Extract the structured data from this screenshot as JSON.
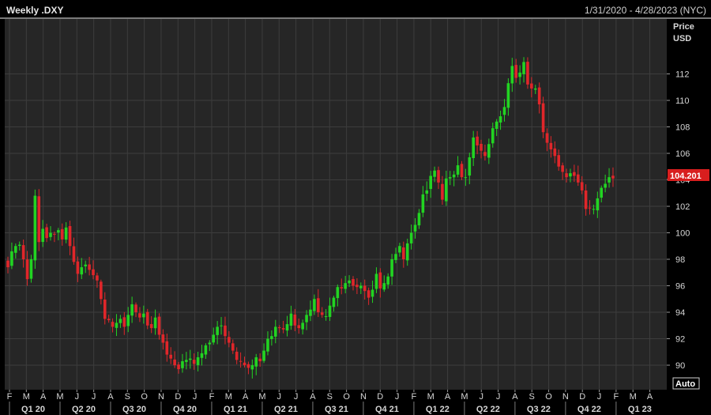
{
  "header": {
    "title": "Weekly .DXY",
    "date_range": "1/31/2020 - 4/28/2023 (NYC)"
  },
  "axis": {
    "price_label": "Price",
    "unit_label": "USD",
    "last_price": "104.201",
    "auto_label": "Auto"
  },
  "colors": {
    "up": "#22d422",
    "down": "#e0262a",
    "background": "#262626",
    "grid": "#3d3d3d",
    "last_price_bg": "#d81e1e"
  },
  "chart_data": {
    "type": "candlestick",
    "title": "Weekly .DXY",
    "ylabel": "Price USD",
    "ylim": [
      89.2,
      115.6
    ],
    "y_ticks": [
      90,
      92,
      94,
      96,
      98,
      100,
      102,
      104,
      106,
      108,
      110,
      112
    ],
    "month_ticks": [
      "F",
      "M",
      "A",
      "M",
      "J",
      "J",
      "A",
      "S",
      "O",
      "N",
      "D",
      "J",
      "F",
      "M",
      "A",
      "M",
      "J",
      "J",
      "A",
      "S",
      "O",
      "N",
      "D",
      "J",
      "F",
      "M",
      "A",
      "M",
      "J",
      "J",
      "A",
      "S",
      "O",
      "N",
      "D",
      "J",
      "F",
      "M",
      "A"
    ],
    "quarter_ticks": [
      "Q1 20",
      "Q2 20",
      "Q3 20",
      "Q4 20",
      "Q1 21",
      "Q2 21",
      "Q3 21",
      "Q4 21",
      "Q1 22",
      "Q2 22",
      "Q3 22",
      "Q4 22",
      "Q1 23"
    ],
    "closes": [
      97.4,
      98.6,
      99.0,
      99.1,
      98.0,
      96.5,
      98.0,
      102.8,
      99.3,
      100.3,
      99.6,
      100.0,
      99.9,
      100.2,
      99.5,
      100.4,
      99.0,
      97.8,
      96.9,
      97.4,
      97.6,
      97.2,
      96.8,
      96.4,
      95.0,
      93.5,
      93.4,
      92.9,
      93.2,
      93.5,
      92.9,
      93.8,
      94.6,
      94.0,
      93.6,
      93.9,
      93.0,
      92.8,
      93.6,
      92.3,
      91.7,
      90.8,
      90.5,
      90.0,
      89.7,
      90.3,
      90.4,
      90.5,
      90.1,
      90.6,
      90.9,
      91.5,
      91.7,
      92.3,
      92.9,
      93.0,
      92.2,
      91.7,
      91.1,
      90.4,
      90.3,
      90.0,
      89.8,
      90.0,
      90.6,
      90.3,
      91.1,
      92.0,
      92.2,
      92.9,
      92.8,
      92.7,
      93.1,
      93.9,
      93.0,
      92.8,
      93.2,
      93.8,
      94.2,
      95.0,
      94.0,
      93.8,
      93.7,
      94.5,
      95.1,
      95.9,
      95.8,
      96.2,
      96.4,
      96.0,
      95.9,
      96.0,
      95.6,
      95.1,
      95.7,
      96.9,
      95.8,
      96.2,
      96.7,
      98.0,
      98.4,
      99.0,
      98.0,
      99.2,
      100.0,
      100.6,
      101.5,
      102.9,
      103.2,
      104.3,
      104.7,
      103.8,
      102.5,
      104.1,
      104.2,
      104.4,
      105.1,
      104.2,
      104.2,
      105.7,
      107.2,
      106.6,
      106.2,
      105.8,
      106.7,
      107.9,
      108.4,
      108.8,
      109.5,
      111.3,
      112.6,
      111.7,
      112.1,
      112.9,
      111.2,
      110.9,
      110.9,
      109.7,
      107.6,
      106.8,
      106.3,
      105.8,
      105.0,
      104.6,
      104.2,
      104.5,
      104.3,
      103.8,
      103.2,
      101.8,
      101.9,
      101.8,
      102.6,
      103.4,
      103.7,
      104.2,
      104.1
    ]
  }
}
